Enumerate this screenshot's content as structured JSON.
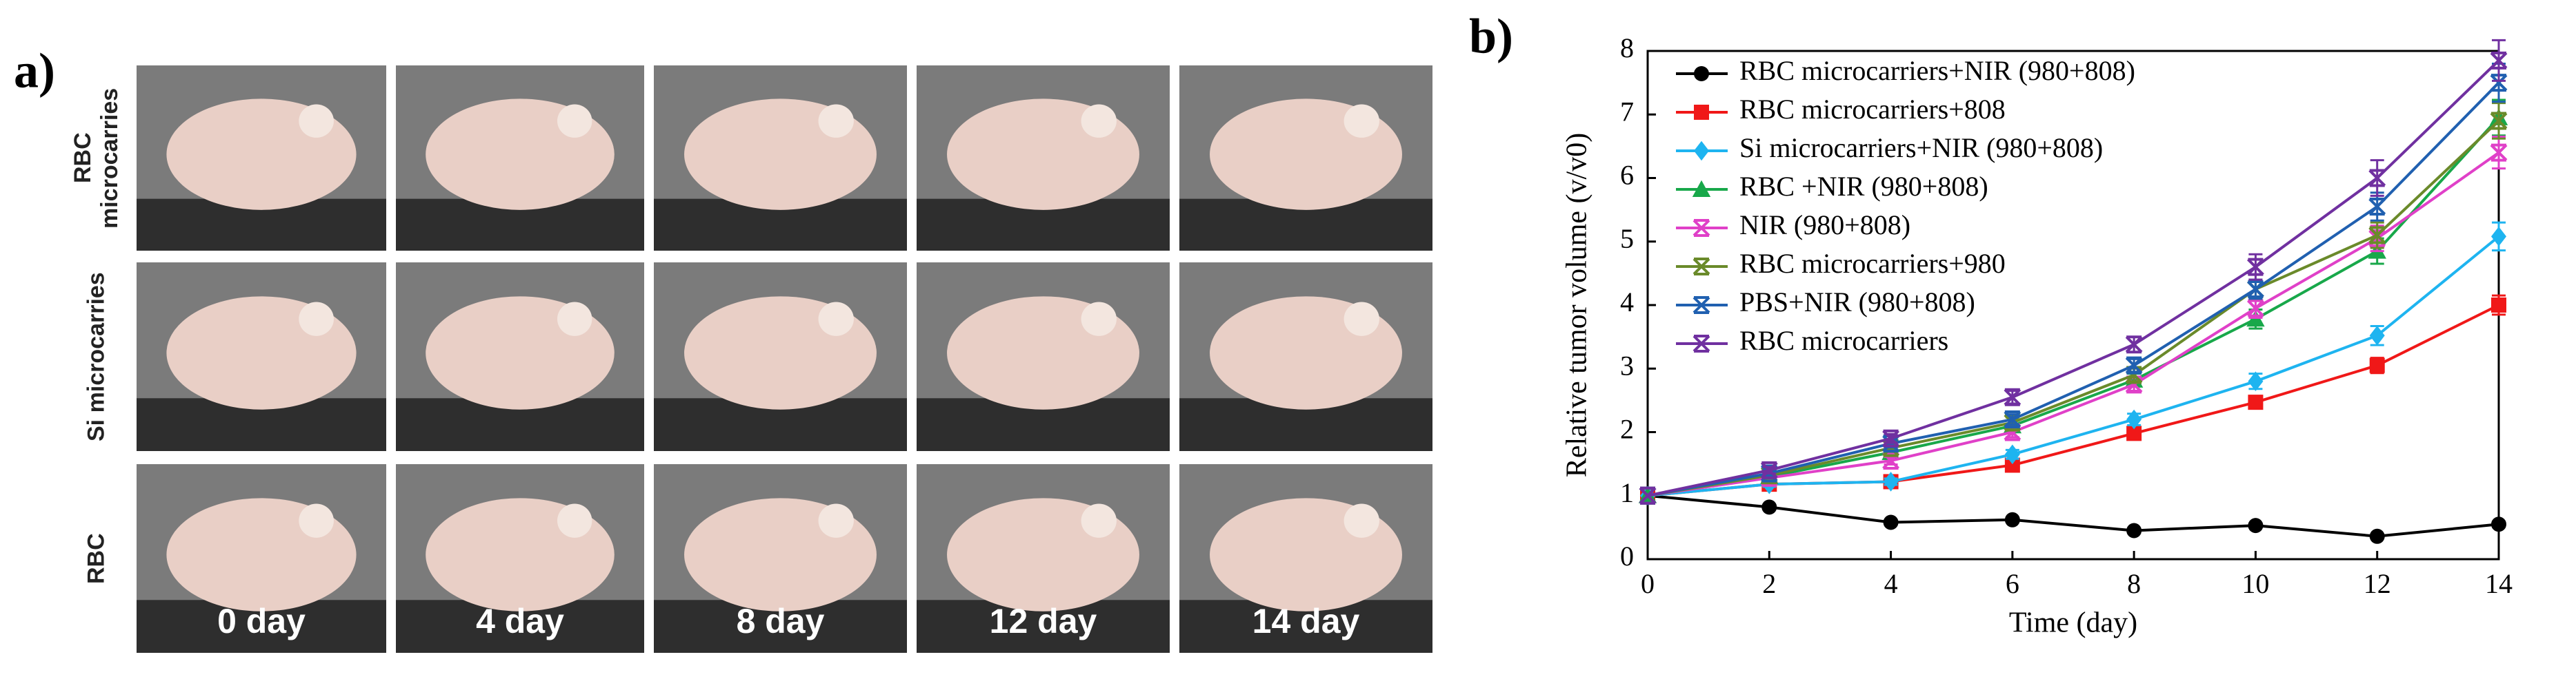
{
  "panel_a": {
    "label": "a)",
    "rows": [
      "RBC microcarries",
      "Si microcarries",
      "RBC"
    ],
    "days": [
      "0 day",
      "4 day",
      "8 day",
      "12 day",
      "14 day"
    ]
  },
  "chart_data": {
    "type": "line",
    "label": "b)",
    "x_label": "Time (day)",
    "y_label": "Relative tumor volume (v/v0)",
    "x": [
      0,
      2,
      4,
      6,
      8,
      10,
      12,
      14
    ],
    "xlim": [
      0,
      14
    ],
    "xticks": [
      0,
      2,
      4,
      6,
      8,
      10,
      12,
      14
    ],
    "ylim": [
      0,
      8
    ],
    "yticks": [
      0,
      1,
      2,
      3,
      4,
      5,
      6,
      7,
      8
    ],
    "legend": "upper left",
    "series": [
      {
        "name": "RBC microcarriers+NIR (980+808)",
        "color": "#000000",
        "marker": "circle",
        "values": [
          1,
          0.82,
          0.58,
          0.62,
          0.45,
          0.53,
          0.36,
          0.55
        ],
        "errors": [
          0,
          0.03,
          0.03,
          0.03,
          0.03,
          0.03,
          0.03,
          0.04
        ]
      },
      {
        "name": "RBC microcarriers+808",
        "color": "#f01818",
        "marker": "square",
        "values": [
          1,
          1.18,
          1.22,
          1.48,
          1.98,
          2.47,
          3.05,
          4.0
        ],
        "errors": [
          0,
          0.04,
          0.05,
          0.06,
          0.08,
          0.1,
          0.12,
          0.15
        ]
      },
      {
        "name": "Si microcarriers+NIR (980+808)",
        "color": "#1eb4f0",
        "marker": "diamond",
        "values": [
          1,
          1.18,
          1.22,
          1.65,
          2.2,
          2.8,
          3.52,
          5.08
        ],
        "errors": [
          0,
          0.04,
          0.05,
          0.07,
          0.09,
          0.12,
          0.15,
          0.22
        ]
      },
      {
        "name": "RBC +NIR (980+808)",
        "color": "#18a84a",
        "marker": "triangle",
        "values": [
          1,
          1.3,
          1.68,
          2.1,
          2.82,
          3.78,
          4.85,
          6.95
        ],
        "errors": [
          0,
          0.05,
          0.06,
          0.08,
          0.1,
          0.15,
          0.2,
          0.28
        ]
      },
      {
        "name": "NIR (980+808)",
        "color": "#e040c8",
        "marker": "x",
        "values": [
          1,
          1.28,
          1.55,
          2.0,
          2.75,
          3.95,
          5.05,
          6.4
        ],
        "errors": [
          0,
          0.05,
          0.06,
          0.08,
          0.1,
          0.15,
          0.2,
          0.25
        ]
      },
      {
        "name": "RBC microcarriers+980",
        "color": "#6a8a2a",
        "marker": "x",
        "values": [
          1,
          1.32,
          1.75,
          2.15,
          2.9,
          4.25,
          5.1,
          6.9
        ],
        "errors": [
          0,
          0.05,
          0.06,
          0.08,
          0.1,
          0.15,
          0.2,
          0.28
        ]
      },
      {
        "name": "PBS+NIR (980+808)",
        "color": "#2060b0",
        "marker": "x",
        "values": [
          1,
          1.35,
          1.82,
          2.2,
          3.05,
          4.25,
          5.55,
          7.5
        ],
        "errors": [
          0,
          0.05,
          0.06,
          0.08,
          0.1,
          0.15,
          0.22,
          0.3
        ]
      },
      {
        "name": "RBC microcarriers",
        "color": "#7030a0",
        "marker": "x",
        "values": [
          1,
          1.4,
          1.9,
          2.55,
          3.38,
          4.6,
          6.0,
          7.85
        ],
        "errors": [
          0,
          0.05,
          0.07,
          0.1,
          0.12,
          0.2,
          0.28,
          0.32
        ]
      }
    ]
  }
}
